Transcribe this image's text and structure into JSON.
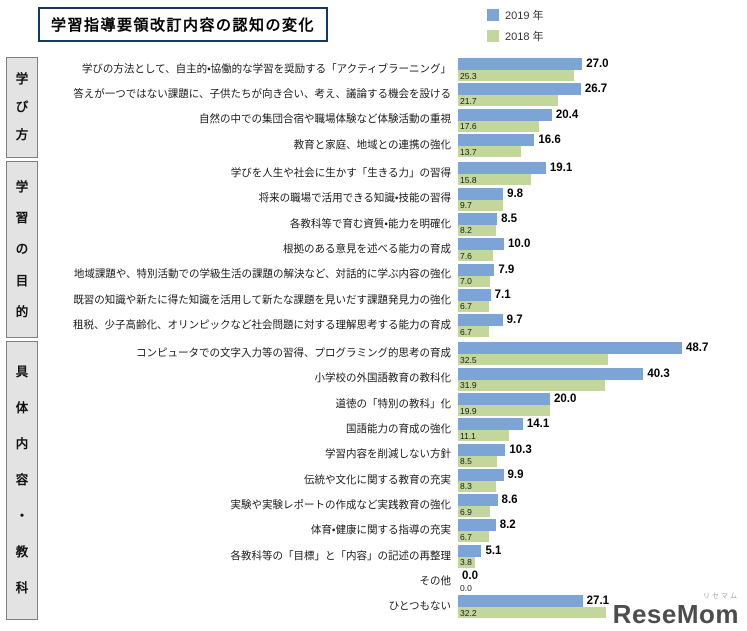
{
  "title": "学習指導要領改訂内容の認知の変化",
  "legend": [
    {
      "label": "2019 年",
      "color": "#7da4d6"
    },
    {
      "label": "2018 年",
      "color": "#c3d69b"
    }
  ],
  "logo": {
    "main": "ReseMom",
    "sub": "リセマム"
  },
  "chart_data": {
    "type": "bar",
    "orientation": "horizontal",
    "unit": "%",
    "xlim": [
      0,
      52
    ],
    "legend_position": "top-right",
    "series_names": [
      "2019年",
      "2018年"
    ],
    "colors": {
      "s2019": "#7da4d6",
      "s2018": "#c3d69b"
    },
    "groups": [
      {
        "label": "学び方",
        "items": [
          {
            "category": "学びの方法として、自主的・協働的な学習を奨励する「アクティブラーニング」",
            "v2019": 27.0,
            "v2018": 25.3
          },
          {
            "category": "答えが一つではない課題に、子供たちが向き合い、考え、議論する機会を設ける",
            "v2019": 26.7,
            "v2018": 21.7
          },
          {
            "category": "自然の中での集団合宿や職場体験など体験活動の重視",
            "v2019": 20.4,
            "v2018": 17.6
          },
          {
            "category": "教育と家庭、地域との連携の強化",
            "v2019": 16.6,
            "v2018": 13.7
          }
        ]
      },
      {
        "label": "学習の目的",
        "items": [
          {
            "category": "学びを人生や社会に生かす「生きる力」の習得",
            "v2019": 19.1,
            "v2018": 15.8
          },
          {
            "category": "将来の職場で活用できる知識・技能の習得",
            "v2019": 9.8,
            "v2018": 9.7
          },
          {
            "category": "各教科等で育む資質・能力を明確化",
            "v2019": 8.5,
            "v2018": 8.2
          },
          {
            "category": "根拠のある意見を述べる能力の育成",
            "v2019": 10.0,
            "v2018": 7.6
          },
          {
            "category": "地域課題や、特別活動での学級生活の課題の解決など、対話的に学ぶ内容の強化",
            "v2019": 7.9,
            "v2018": 7.0
          },
          {
            "category": "既習の知識や新たに得た知識を活用して新たな課題を見いだす課題発見力の強化",
            "v2019": 7.1,
            "v2018": 6.7
          },
          {
            "category": "租税、少子高齢化、オリンピックなど社会問題に対する理解思考する能力の育成",
            "v2019": 9.7,
            "v2018": 6.7
          }
        ]
      },
      {
        "label": "具体内容・教科",
        "items": [
          {
            "category": "コンピュータでの文字入力等の習得、プログラミング的思考の育成",
            "v2019": 48.7,
            "v2018": 32.5
          },
          {
            "category": "小学校の外国語教育の教科化",
            "v2019": 40.3,
            "v2018": 31.9
          },
          {
            "category": "道徳の「特別の教科」化",
            "v2019": 20.0,
            "v2018": 19.9
          },
          {
            "category": "国語能力の育成の強化",
            "v2019": 14.1,
            "v2018": 11.1
          },
          {
            "category": "学習内容を削減しない方針",
            "v2019": 10.3,
            "v2018": 8.5
          },
          {
            "category": "伝統や文化に関する教育の充実",
            "v2019": 9.9,
            "v2018": 8.3
          },
          {
            "category": "実験や実験レポートの作成など実践教育の強化",
            "v2019": 8.6,
            "v2018": 6.9
          },
          {
            "category": "体育・健康に関する指導の充実",
            "v2019": 8.2,
            "v2018": 6.7
          },
          {
            "category": "各教科等の「目標」と「内容」の記述の再整理",
            "v2019": 5.1,
            "v2018": 3.8
          },
          {
            "category": "その他",
            "v2019": 0.0,
            "v2018": 0.0
          },
          {
            "category": "ひとつもない",
            "v2019": 27.1,
            "v2018": 32.2
          }
        ]
      }
    ]
  }
}
